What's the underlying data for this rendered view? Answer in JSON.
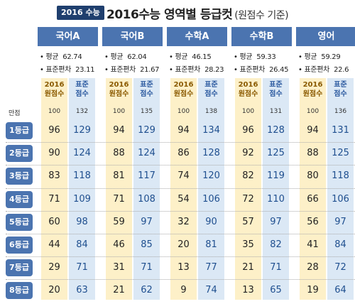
{
  "header": {
    "badge": "2016 수능",
    "title": "2016수능 영역별 등급컷",
    "subtitle": "(원점수 기준)"
  },
  "labels": {
    "mean": "평균",
    "sd": "표준편차",
    "raw_head_1": "2016",
    "raw_head_2": "원점수",
    "std_head_1": "표준",
    "std_head_2": "점수",
    "max_label": "만점"
  },
  "grades": [
    "1등급",
    "2등급",
    "3등급",
    "4등급",
    "5등급",
    "6등급",
    "7등급",
    "8등급"
  ],
  "subjects": [
    {
      "name": "국어A",
      "mean": "62.74",
      "sd": "23.11",
      "max_raw": "100",
      "max_std": "132",
      "raw": [
        "96",
        "90",
        "83",
        "71",
        "60",
        "44",
        "29",
        "20"
      ],
      "std": [
        "129",
        "124",
        "118",
        "109",
        "98",
        "84",
        "71",
        "63"
      ]
    },
    {
      "name": "국어B",
      "mean": "62.04",
      "sd": "21.67",
      "max_raw": "100",
      "max_std": "135",
      "raw": [
        "94",
        "88",
        "81",
        "71",
        "59",
        "46",
        "31",
        "21"
      ],
      "std": [
        "129",
        "124",
        "117",
        "108",
        "97",
        "85",
        "71",
        "62"
      ]
    },
    {
      "name": "수학A",
      "mean": "46.15",
      "sd": "28.23",
      "max_raw": "100",
      "max_std": "138",
      "raw": [
        "94",
        "86",
        "74",
        "54",
        "32",
        "20",
        "13",
        "9"
      ],
      "std": [
        "134",
        "128",
        "120",
        "106",
        "90",
        "81",
        "77",
        "74"
      ]
    },
    {
      "name": "수학B",
      "mean": "59.33",
      "sd": "26.45",
      "max_raw": "100",
      "max_std": "131",
      "raw": [
        "96",
        "92",
        "82",
        "72",
        "57",
        "35",
        "21",
        "13"
      ],
      "std": [
        "128",
        "125",
        "119",
        "110",
        "97",
        "82",
        "71",
        "65"
      ]
    },
    {
      "name": "영어",
      "mean": "59.29",
      "sd": "22.6",
      "max_raw": "100",
      "max_std": "136",
      "raw": [
        "94",
        "88",
        "80",
        "66",
        "56",
        "41",
        "28",
        "19"
      ],
      "std": [
        "131",
        "125",
        "118",
        "106",
        "97",
        "84",
        "72",
        "64"
      ]
    }
  ]
}
